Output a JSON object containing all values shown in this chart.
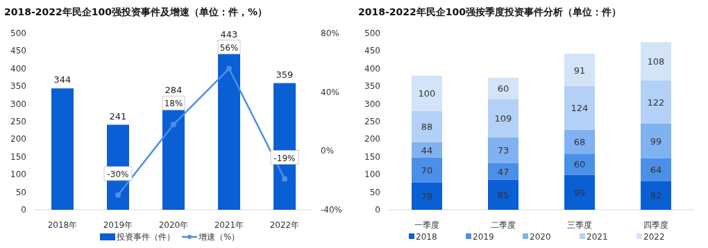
{
  "chart_data": [
    {
      "type": "bar",
      "title": "2018-2022年民企100强投资事件及增速（单位：件，%）",
      "categories": [
        "2018年",
        "2019年",
        "2020年",
        "2021年",
        "2022年"
      ],
      "series": [
        {
          "name": "投资事件（件）",
          "type": "bar",
          "color": "#0b5fd5",
          "values": [
            344,
            241,
            284,
            443,
            359
          ],
          "value_labels": [
            "344",
            "241",
            "284",
            "443",
            "359"
          ]
        },
        {
          "name": "增速（%）",
          "type": "line",
          "axis": "y2",
          "color": "#4a8fe6",
          "marker": "circle",
          "values": [
            null,
            -30,
            18,
            56,
            -19
          ],
          "value_labels": [
            null,
            "-30%",
            "18%",
            "56%",
            "-19%"
          ]
        }
      ],
      "ylim": [
        0,
        500
      ],
      "yticks": [
        0,
        50,
        100,
        150,
        200,
        250,
        300,
        350,
        400,
        450,
        500
      ],
      "y2lim": [
        -40,
        80
      ],
      "y2ticks": [
        {
          "value": -40,
          "label": "-40%"
        },
        {
          "value": 0,
          "label": "0%"
        },
        {
          "value": 40,
          "label": "40%"
        },
        {
          "value": 80,
          "label": "80%"
        }
      ],
      "grid": false,
      "legend": "bottom"
    },
    {
      "type": "bar",
      "title": "2018-2022年民企100强按季度投资事件分析（单位：件）",
      "categories": [
        "一季度",
        "二季度",
        "三季度",
        "四季度"
      ],
      "stacked": true,
      "data_labels": true,
      "series": [
        {
          "name": "2018",
          "color": "#0b5fd5",
          "values": [
            78,
            85,
            99,
            82
          ]
        },
        {
          "name": "2019",
          "color": "#4a8fe8",
          "values": [
            70,
            47,
            60,
            64
          ]
        },
        {
          "name": "2020",
          "color": "#80b1f0",
          "values": [
            44,
            73,
            68,
            99
          ]
        },
        {
          "name": "2021",
          "color": "#b3d1f7",
          "values": [
            88,
            109,
            124,
            122
          ]
        },
        {
          "name": "2022",
          "color": "#d3e3f8",
          "values": [
            100,
            60,
            91,
            108
          ]
        }
      ],
      "ylim": [
        0,
        500
      ],
      "yticks": [
        0,
        50,
        100,
        150,
        200,
        250,
        300,
        350,
        400,
        450,
        500
      ],
      "grid": false,
      "legend": "bottom"
    }
  ]
}
